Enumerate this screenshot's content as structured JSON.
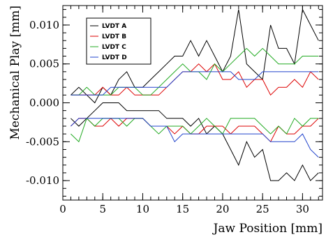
{
  "chart_data": {
    "type": "line",
    "title": "",
    "xlabel": "Jaw Position [mm]",
    "ylabel": "Mechanical Play [mm]",
    "xlim": [
      0,
      32.5
    ],
    "ylim": [
      -0.0125,
      0.0125
    ],
    "x_ticks": [
      0,
      5,
      10,
      15,
      20,
      25,
      30
    ],
    "y_ticks": [
      -0.01,
      -0.005,
      0.0,
      0.005,
      0.01
    ],
    "x_tick_labels": [
      "0",
      "5",
      "10",
      "15",
      "20",
      "25",
      "30"
    ],
    "y_tick_labels": [
      "-0.010",
      "-0.005",
      "0.000",
      "0.005",
      "0.010"
    ],
    "x_minor_step": 1,
    "y_minor_step": 0.001,
    "grid": false,
    "legend_position": "top-left",
    "x": [
      1,
      2,
      3,
      4,
      5,
      6,
      7,
      8,
      9,
      10,
      11,
      12,
      13,
      14,
      15,
      16,
      17,
      18,
      19,
      20,
      21,
      22,
      23,
      24,
      25,
      26,
      27,
      28,
      29,
      30,
      31,
      32
    ],
    "series": [
      {
        "name": "LVDT A",
        "color": "#000000",
        "upper": [
          0.001,
          0.002,
          0.001,
          0.0,
          0.002,
          0.001,
          0.003,
          0.004,
          0.002,
          0.002,
          0.003,
          0.004,
          0.005,
          0.006,
          0.006,
          0.008,
          0.006,
          0.008,
          0.006,
          0.004,
          0.006,
          0.012,
          0.005,
          0.004,
          0.003,
          0.01,
          0.007,
          0.007,
          0.005,
          0.012,
          0.01,
          0.008
        ],
        "lower": [
          -0.002,
          -0.003,
          -0.002,
          -0.001,
          0.0,
          0.0,
          0.0,
          -0.001,
          -0.001,
          -0.001,
          -0.001,
          -0.001,
          -0.002,
          -0.002,
          -0.002,
          -0.003,
          -0.002,
          -0.004,
          -0.003,
          -0.004,
          -0.006,
          -0.008,
          -0.005,
          -0.007,
          -0.006,
          -0.01,
          -0.01,
          -0.009,
          -0.01,
          -0.008,
          -0.01,
          -0.009
        ]
      },
      {
        "name": "LVDT B",
        "color": "#dd0000",
        "upper": [
          0.001,
          0.001,
          0.001,
          0.001,
          0.002,
          0.001,
          0.001,
          0.002,
          0.001,
          0.001,
          0.001,
          0.001,
          0.002,
          0.003,
          0.004,
          0.004,
          0.005,
          0.004,
          0.005,
          0.003,
          0.003,
          0.004,
          0.002,
          0.003,
          0.003,
          0.001,
          0.002,
          0.002,
          0.003,
          0.002,
          0.004,
          0.003
        ],
        "lower": [
          -0.003,
          -0.002,
          -0.002,
          -0.003,
          -0.003,
          -0.002,
          -0.003,
          -0.002,
          -0.002,
          -0.002,
          -0.003,
          -0.003,
          -0.003,
          -0.004,
          -0.003,
          -0.004,
          -0.004,
          -0.003,
          -0.003,
          -0.003,
          -0.004,
          -0.003,
          -0.003,
          -0.003,
          -0.004,
          -0.005,
          -0.003,
          -0.004,
          -0.004,
          -0.003,
          -0.003,
          -0.002
        ]
      },
      {
        "name": "LVDT C",
        "color": "#22aa22",
        "upper": [
          0.001,
          0.001,
          0.002,
          0.001,
          0.001,
          0.001,
          0.002,
          0.002,
          0.002,
          0.001,
          0.001,
          0.002,
          0.003,
          0.004,
          0.005,
          0.004,
          0.004,
          0.003,
          0.005,
          0.004,
          0.005,
          0.006,
          0.007,
          0.006,
          0.007,
          0.006,
          0.005,
          0.005,
          0.005,
          0.006,
          0.006,
          0.006
        ],
        "lower": [
          -0.004,
          -0.005,
          -0.002,
          -0.003,
          -0.002,
          -0.002,
          -0.002,
          -0.003,
          -0.002,
          -0.002,
          -0.003,
          -0.004,
          -0.003,
          -0.003,
          -0.003,
          -0.004,
          -0.003,
          -0.002,
          -0.003,
          -0.004,
          -0.002,
          -0.002,
          -0.002,
          -0.002,
          -0.003,
          -0.004,
          -0.003,
          -0.004,
          -0.002,
          -0.003,
          -0.002,
          -0.002
        ]
      },
      {
        "name": "LVDT D",
        "color": "#2244cc",
        "upper": [
          0.001,
          0.001,
          0.001,
          0.001,
          0.001,
          0.002,
          0.002,
          0.002,
          0.002,
          0.002,
          0.002,
          0.002,
          0.002,
          0.003,
          0.004,
          0.004,
          0.004,
          0.004,
          0.004,
          0.004,
          0.004,
          0.003,
          0.003,
          0.003,
          0.004,
          0.004,
          0.004,
          0.004,
          0.004,
          0.004,
          0.004,
          0.004
        ],
        "lower": [
          -0.003,
          -0.002,
          -0.002,
          -0.002,
          -0.002,
          -0.002,
          -0.002,
          -0.002,
          -0.002,
          -0.002,
          -0.003,
          -0.003,
          -0.003,
          -0.005,
          -0.004,
          -0.004,
          -0.004,
          -0.004,
          -0.004,
          -0.004,
          -0.004,
          -0.004,
          -0.004,
          -0.004,
          -0.004,
          -0.005,
          -0.005,
          -0.005,
          -0.005,
          -0.004,
          -0.006,
          -0.007
        ]
      }
    ]
  }
}
